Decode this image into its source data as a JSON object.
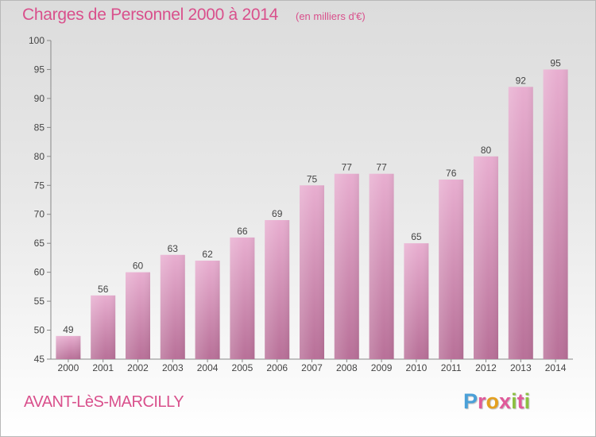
{
  "header": {
    "title": "Charges de Personnel 2000 à 2014",
    "unit_note": "(en milliers d'€)"
  },
  "footer": {
    "commune": "AVANT-LèS-MARCILLY",
    "logo_text": "Proxiti",
    "logo_icon": "proxiti-logo"
  },
  "colors": {
    "accent": "#d9508c",
    "bar_top": "#e6a8cc",
    "bar_bottom": "#b87098",
    "axis": "#888888"
  },
  "chart_data": {
    "type": "bar",
    "title": "Charges de Personnel 2000 à 2014",
    "subtitle": "(en milliers d'€)",
    "categories": [
      "2000",
      "2001",
      "2002",
      "2003",
      "2004",
      "2005",
      "2006",
      "2007",
      "2008",
      "2009",
      "2010",
      "2011",
      "2012",
      "2013",
      "2014"
    ],
    "values": [
      49,
      56,
      60,
      63,
      62,
      66,
      69,
      75,
      77,
      77,
      65,
      76,
      80,
      92,
      95
    ],
    "ylim": [
      45,
      100
    ],
    "yticks": [
      45,
      50,
      55,
      60,
      65,
      70,
      75,
      80,
      85,
      90,
      95,
      100
    ],
    "xlabel": "",
    "ylabel": "",
    "grid": false,
    "data_labels": true
  }
}
